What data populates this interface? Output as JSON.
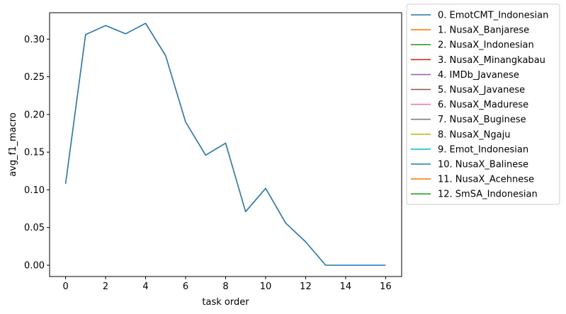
{
  "chart_data": {
    "type": "line",
    "title": "",
    "xlabel": "task order",
    "ylabel": "avg_f1_macro",
    "xlim": [
      -0.8,
      16.8
    ],
    "ylim": [
      -0.015,
      0.335
    ],
    "xticks": [
      0,
      2,
      4,
      6,
      8,
      10,
      12,
      14,
      16
    ],
    "yticks": [
      0.0,
      0.05,
      0.1,
      0.15,
      0.2,
      0.25,
      0.3
    ],
    "ytick_labels": [
      "0.00",
      "0.05",
      "0.10",
      "0.15",
      "0.20",
      "0.25",
      "0.30"
    ],
    "grid": false,
    "legend_position": "outside-right-top",
    "series": [
      {
        "name": "avg_f1_macro",
        "color": "#1f77b4",
        "x": [
          0,
          1,
          2,
          3,
          4,
          5,
          6,
          7,
          8,
          9,
          10,
          11,
          12,
          13,
          14,
          15,
          16
        ],
        "y": [
          0.108,
          0.306,
          0.318,
          0.307,
          0.321,
          0.278,
          0.19,
          0.146,
          0.162,
          0.071,
          0.102,
          0.056,
          0.031,
          0.0,
          0.0,
          0.0,
          0.0
        ]
      }
    ],
    "legend": [
      {
        "label": "0. EmotCMT_Indonesian",
        "color": "#1f77b4"
      },
      {
        "label": "1. NusaX_Banjarese",
        "color": "#ff7f0e"
      },
      {
        "label": "2. NusaX_Indonesian",
        "color": "#2ca02c"
      },
      {
        "label": "3. NusaX_Minangkabau",
        "color": "#d62728"
      },
      {
        "label": "4. IMDb_Javanese",
        "color": "#9467bd"
      },
      {
        "label": "5. NusaX_Javanese",
        "color": "#8c564b"
      },
      {
        "label": "6. NusaX_Madurese",
        "color": "#e377c2"
      },
      {
        "label": "7. NusaX_Buginese",
        "color": "#7f7f7f"
      },
      {
        "label": "8. NusaX_Ngaju",
        "color": "#bcbd22"
      },
      {
        "label": "9. Emot_Indonesian",
        "color": "#17becf"
      },
      {
        "label": "10. NusaX_Balinese",
        "color": "#1f77b4"
      },
      {
        "label": "11. NusaX_Acehnese",
        "color": "#ff7f0e"
      },
      {
        "label": "12. SmSA_Indonesian",
        "color": "#2ca02c"
      }
    ]
  }
}
